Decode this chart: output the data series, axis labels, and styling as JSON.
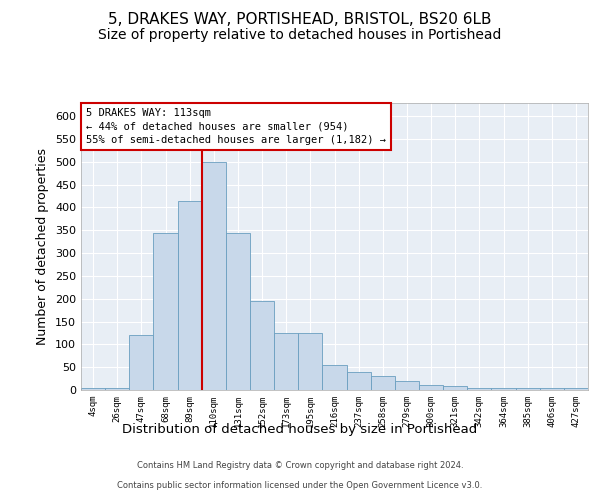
{
  "title": "5, DRAKES WAY, PORTISHEAD, BRISTOL, BS20 6LB",
  "subtitle": "Size of property relative to detached houses in Portishead",
  "xlabel": "Distribution of detached houses by size in Portishead",
  "ylabel": "Number of detached properties",
  "footer_line1": "Contains HM Land Registry data © Crown copyright and database right 2024.",
  "footer_line2": "Contains public sector information licensed under the Open Government Licence v3.0.",
  "bin_labels": [
    "4sqm",
    "26sqm",
    "47sqm",
    "68sqm",
    "89sqm",
    "110sqm",
    "131sqm",
    "152sqm",
    "173sqm",
    "195sqm",
    "216sqm",
    "237sqm",
    "258sqm",
    "279sqm",
    "300sqm",
    "321sqm",
    "342sqm",
    "364sqm",
    "385sqm",
    "406sqm",
    "427sqm"
  ],
  "bar_heights": [
    5,
    5,
    120,
    345,
    415,
    500,
    345,
    195,
    125,
    125,
    55,
    40,
    30,
    20,
    10,
    8,
    5,
    5,
    5,
    5,
    5
  ],
  "bar_color": "#c8d8ea",
  "bar_edge_color": "#6a9ec0",
  "annotation_text": "5 DRAKES WAY: 113sqm\n← 44% of detached houses are smaller (954)\n55% of semi-detached houses are larger (1,182) →",
  "vline_color": "#cc0000",
  "vline_x_index": 5,
  "ylim": [
    0,
    630
  ],
  "yticks": [
    0,
    50,
    100,
    150,
    200,
    250,
    300,
    350,
    400,
    450,
    500,
    550,
    600
  ],
  "plot_bg_color": "#e8eef5",
  "grid_color": "#ffffff",
  "title_fontsize": 11,
  "subtitle_fontsize": 10,
  "xlabel_fontsize": 9.5,
  "ylabel_fontsize": 9
}
